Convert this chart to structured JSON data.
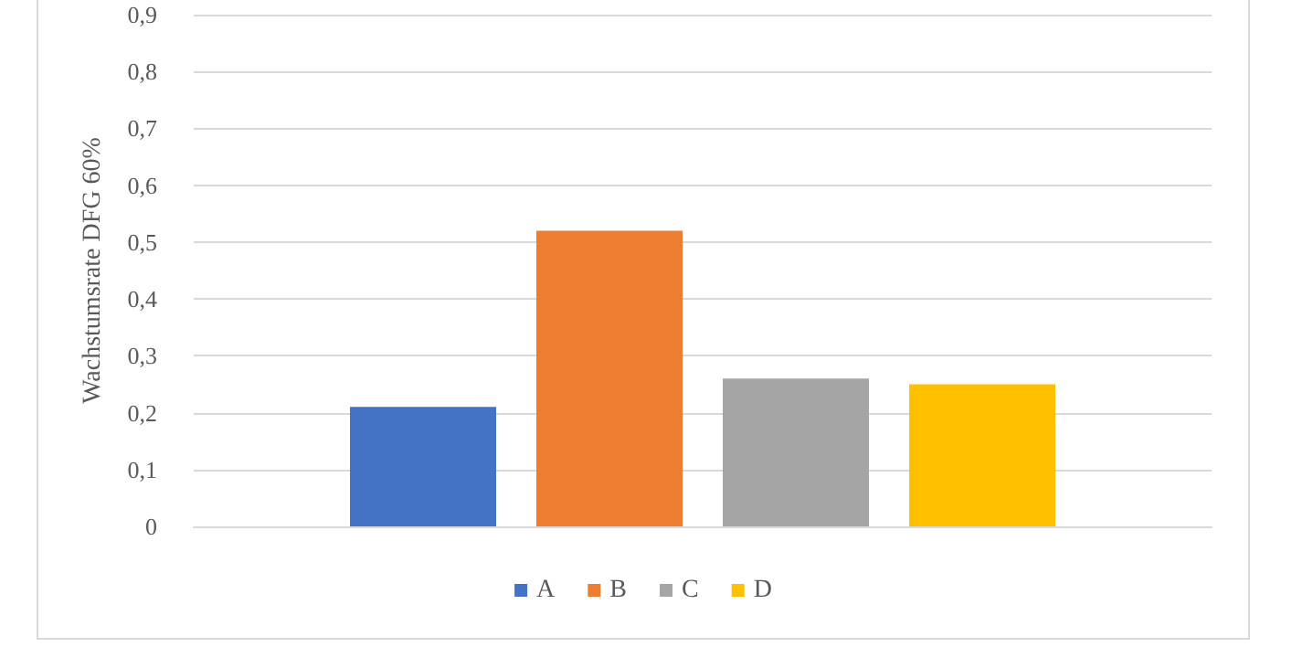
{
  "chart_data": {
    "type": "bar",
    "ylabel": "Wachstumsrate DFG 60%",
    "categories": [
      null
    ],
    "series": [
      {
        "name": "A",
        "color": "#4472c4",
        "values": [
          0.21
        ]
      },
      {
        "name": "B",
        "color": "#ed7d31",
        "values": [
          0.52
        ]
      },
      {
        "name": "C",
        "color": "#a5a5a5",
        "values": [
          0.26
        ]
      },
      {
        "name": "D",
        "color": "#ffc000",
        "values": [
          0.25
        ]
      }
    ],
    "ylim": [
      0,
      0.9
    ],
    "yticks": [
      {
        "value": 0,
        "label": "0"
      },
      {
        "value": 0.1,
        "label": "0,1"
      },
      {
        "value": 0.2,
        "label": "0,2"
      },
      {
        "value": 0.3,
        "label": "0,3"
      },
      {
        "value": 0.4,
        "label": "0,4"
      },
      {
        "value": 0.5,
        "label": "0,5"
      },
      {
        "value": 0.6,
        "label": "0,6"
      },
      {
        "value": 0.7,
        "label": "0,7"
      },
      {
        "value": 0.8,
        "label": "0,8"
      },
      {
        "value": 0.9,
        "label": "0,9"
      }
    ],
    "grid": "y",
    "legend": "bottom"
  }
}
